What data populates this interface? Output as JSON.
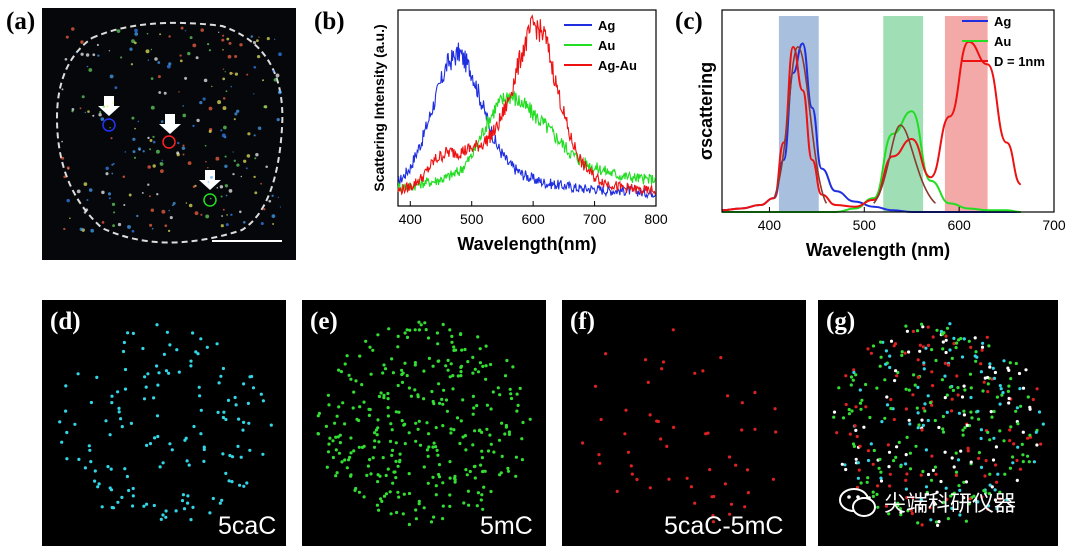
{
  "labels": {
    "a": "(a)",
    "b": "(b)",
    "c": "(c)",
    "d": "(d)",
    "e": "(e)",
    "f": "(f)",
    "g": "(g)"
  },
  "captions": {
    "d": "5caC",
    "e": "5mC",
    "f": "5caC-5mC"
  },
  "watermark": "尖端科研仪器",
  "colors": {
    "ag": "#1f2fe0",
    "au": "#22dd22",
    "agau": "#ee1111",
    "cyan": "#33d6e6",
    "green": "#33dd33",
    "red": "#dd2222",
    "band_blue": "#9ab4d8",
    "band_green": "#8fd9a8",
    "band_red": "#f29a9a"
  },
  "chart_data": [
    {
      "id": "b",
      "type": "line",
      "ylabel": "Scattering Intensity (a.u.)",
      "xlabel": "Wavelength(nm)",
      "xlim": [
        380,
        800
      ],
      "xticks": [
        "400",
        "500",
        "600",
        "700",
        "800"
      ],
      "series": [
        {
          "name": "Ag",
          "x": [
            380,
            400,
            420,
            440,
            460,
            480,
            500,
            520,
            540,
            560,
            580,
            600,
            620,
            640,
            660,
            680,
            700,
            720,
            740,
            760,
            780,
            800
          ],
          "values": [
            0.12,
            0.2,
            0.35,
            0.55,
            0.74,
            0.8,
            0.7,
            0.5,
            0.32,
            0.22,
            0.17,
            0.14,
            0.12,
            0.11,
            0.1,
            0.09,
            0.09,
            0.08,
            0.08,
            0.08,
            0.07,
            0.07
          ]
        },
        {
          "name": "Au",
          "x": [
            380,
            400,
            420,
            440,
            460,
            480,
            500,
            520,
            540,
            560,
            580,
            600,
            620,
            640,
            660,
            680,
            700,
            720,
            740,
            760,
            780,
            800
          ],
          "values": [
            0.1,
            0.1,
            0.12,
            0.13,
            0.15,
            0.18,
            0.26,
            0.4,
            0.52,
            0.58,
            0.54,
            0.48,
            0.42,
            0.35,
            0.28,
            0.23,
            0.2,
            0.18,
            0.16,
            0.15,
            0.14,
            0.14
          ]
        },
        {
          "name": "Ag-Au",
          "x": [
            380,
            400,
            420,
            440,
            460,
            480,
            500,
            520,
            540,
            560,
            580,
            600,
            620,
            640,
            660,
            680,
            700,
            720,
            740,
            760,
            780,
            800
          ],
          "values": [
            0.08,
            0.1,
            0.15,
            0.24,
            0.28,
            0.28,
            0.3,
            0.33,
            0.4,
            0.55,
            0.78,
            0.95,
            0.88,
            0.6,
            0.36,
            0.22,
            0.15,
            0.12,
            0.1,
            0.09,
            0.08,
            0.08
          ]
        }
      ],
      "legend": "top-right"
    },
    {
      "id": "c",
      "type": "line",
      "ylabel": "σscattering",
      "xlabel": "Wavelength (nm)",
      "xlim": [
        350,
        700
      ],
      "xticks": [
        "400",
        "500",
        "600",
        "700"
      ],
      "bands": [
        [
          410,
          452
        ],
        [
          520,
          562
        ],
        [
          585,
          630
        ]
      ],
      "series": [
        {
          "name": "Ag",
          "x": [
            350,
            370,
            390,
            405,
            415,
            425,
            435,
            445,
            455,
            470,
            490,
            510,
            530,
            550,
            570,
            590,
            610,
            630,
            650,
            665
          ],
          "values": [
            0.01,
            0.02,
            0.04,
            0.08,
            0.3,
            0.8,
            0.97,
            0.6,
            0.25,
            0.12,
            0.06,
            0.03,
            0.01,
            0.0,
            0.0,
            0.0,
            0.0,
            0.0,
            0.0,
            0.0
          ]
        },
        {
          "name": "Au",
          "x": [
            350,
            370,
            390,
            405,
            415,
            425,
            435,
            445,
            455,
            470,
            490,
            510,
            530,
            550,
            570,
            590,
            610,
            630,
            650,
            665
          ],
          "values": [
            0.0,
            0.0,
            0.0,
            0.0,
            0.0,
            0.0,
            0.0,
            0.0,
            0.0,
            0.0,
            0.02,
            0.08,
            0.45,
            0.58,
            0.18,
            0.05,
            0.02,
            0.01,
            0.01,
            0.0
          ]
        },
        {
          "name": "D = 1nm",
          "x": [
            350,
            370,
            390,
            405,
            415,
            425,
            435,
            445,
            455,
            470,
            490,
            510,
            530,
            550,
            570,
            590,
            610,
            630,
            650,
            665
          ],
          "values": [
            0.01,
            0.02,
            0.04,
            0.08,
            0.4,
            0.95,
            0.7,
            0.3,
            0.1,
            0.04,
            0.03,
            0.07,
            0.32,
            0.42,
            0.2,
            0.55,
            0.98,
            0.85,
            0.4,
            0.16
          ]
        }
      ],
      "legend": "top-right"
    }
  ]
}
